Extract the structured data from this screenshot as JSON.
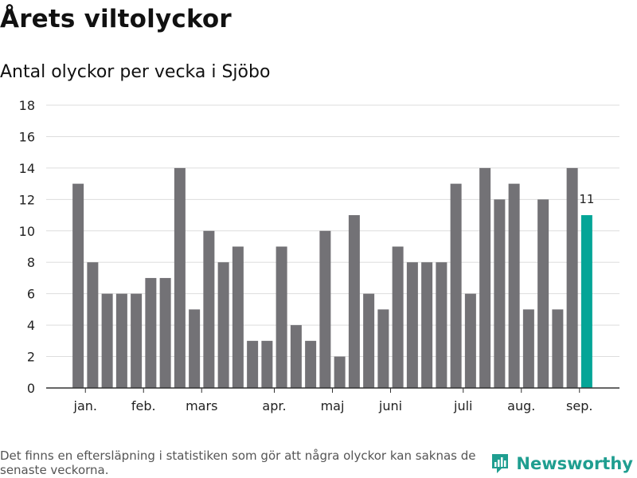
{
  "header": {
    "title": "Årets viltolyckor",
    "subtitle": "Antal olyckor per vecka i Sjöbo"
  },
  "footer": {
    "note": "Det finns en eftersläpning i statistiken som gör att några olyckor kan saknas de senaste veckorna.",
    "brand": "Newsworthy",
    "brand_icon": "newsworthy-logo-icon"
  },
  "colors": {
    "bar": "#737276",
    "highlight": "#04a597",
    "grid": "#dddddd",
    "axis": "#333333",
    "text": "#222222",
    "brand": "#1f9e90"
  },
  "chart_data": {
    "type": "bar",
    "title": "Antal olyckor per vecka i Sjöbo",
    "xlabel": "",
    "ylabel": "",
    "ylim": [
      0,
      18
    ],
    "yticks": [
      0,
      2,
      4,
      6,
      8,
      10,
      12,
      14,
      16,
      18
    ],
    "grid": true,
    "values": [
      13,
      8,
      6,
      6,
      6,
      7,
      7,
      14,
      5,
      10,
      8,
      9,
      3,
      3,
      9,
      4,
      3,
      10,
      2,
      11,
      6,
      5,
      9,
      8,
      8,
      8,
      13,
      6,
      14,
      12,
      13,
      5,
      12,
      5,
      14,
      11
    ],
    "highlight_index": 35,
    "highlight_label": "11",
    "month_labels": [
      {
        "label": "jan.",
        "week": 0.5
      },
      {
        "label": "feb.",
        "week": 4.5
      },
      {
        "label": "mars",
        "week": 8.5
      },
      {
        "label": "apr.",
        "week": 13.5
      },
      {
        "label": "maj",
        "week": 17.5
      },
      {
        "label": "juni",
        "week": 21.5
      },
      {
        "label": "juli",
        "week": 26.5
      },
      {
        "label": "aug.",
        "week": 30.5
      },
      {
        "label": "sep.",
        "week": 34.5
      }
    ]
  }
}
